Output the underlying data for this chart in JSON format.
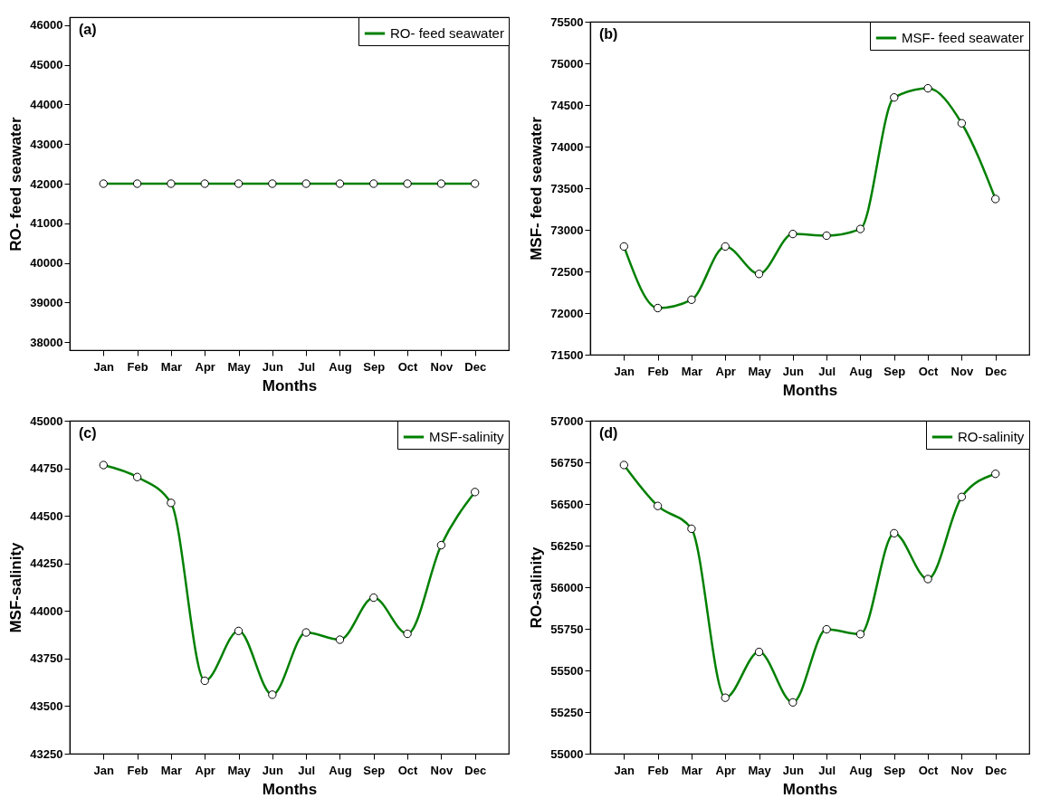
{
  "chart_data": [
    {
      "type": "line",
      "annotations": [
        "(a)"
      ],
      "categories": [
        "Jan",
        "Feb",
        "Mar",
        "Apr",
        "May",
        "Jun",
        "Jul",
        "Aug",
        "Sep",
        "Oct",
        "Nov",
        "Dec"
      ],
      "series": [
        {
          "name": "RO- feed seawater",
          "color": "#008000",
          "values": [
            42000,
            42000,
            42000,
            42000,
            42000,
            42000,
            42000,
            42000,
            42000,
            42000,
            42000,
            42000
          ]
        }
      ],
      "xlabel": "Months",
      "ylabel": "RO- feed seawater",
      "ylim": [
        37800,
        46200
      ],
      "yticks": [
        38000,
        39000,
        40000,
        41000,
        42000,
        43000,
        44000,
        45000,
        46000
      ],
      "marker": "circle",
      "legend": "top right"
    },
    {
      "type": "line",
      "annotations": [
        "(b)"
      ],
      "categories": [
        "Jan",
        "Feb",
        "Mar",
        "Apr",
        "May",
        "Jun",
        "Jul",
        "Aug",
        "Sep",
        "Oct",
        "Nov",
        "Dec"
      ],
      "series": [
        {
          "name": "MSF- feed seawater",
          "color": "#008000",
          "values": [
            72800,
            72060,
            72160,
            72800,
            72470,
            72950,
            72930,
            73010,
            74590,
            74700,
            74280,
            73370
          ]
        }
      ],
      "xlabel": "Months",
      "ylabel": "MSF- feed seawater",
      "ylim": [
        71500,
        75500
      ],
      "yticks": [
        71500,
        72000,
        72500,
        73000,
        73500,
        74000,
        74500,
        75000,
        75500
      ],
      "marker": "circle",
      "legend": "top right"
    },
    {
      "type": "line",
      "annotations": [
        "(c)"
      ],
      "categories": [
        "Jan",
        "Feb",
        "Mar",
        "Apr",
        "May",
        "Jun",
        "Jul",
        "Aug",
        "Sep",
        "Oct",
        "Nov",
        "Dec"
      ],
      "series": [
        {
          "name": "MSF-salinity",
          "color": "#008000",
          "values": [
            44767,
            44704,
            44568,
            43633,
            43895,
            43560,
            43887,
            43849,
            44070,
            43880,
            44346,
            44625
          ]
        }
      ],
      "xlabel": "Months",
      "ylabel": "MSF-salinity",
      "ylim": [
        43250,
        45000
      ],
      "yticks": [
        43250,
        43500,
        43750,
        44000,
        44250,
        44500,
        44750,
        45000
      ],
      "marker": "circle",
      "legend": "top right"
    },
    {
      "type": "line",
      "annotations": [
        "(d)"
      ],
      "categories": [
        "Jan",
        "Feb",
        "Mar",
        "Apr",
        "May",
        "Jun",
        "Jul",
        "Aug",
        "Sep",
        "Oct",
        "Nov",
        "Dec"
      ],
      "series": [
        {
          "name": "RO-salinity",
          "color": "#008000",
          "values": [
            56734,
            56488,
            56351,
            55336,
            55611,
            55308,
            55747,
            55718,
            56324,
            56049,
            56542,
            56681
          ]
        }
      ],
      "xlabel": "Months",
      "ylabel": "RO-salinity",
      "ylim": [
        55000,
        57000
      ],
      "yticks": [
        55000,
        55250,
        55500,
        55750,
        56000,
        56250,
        56500,
        56750,
        57000
      ],
      "marker": "circle",
      "legend": "top right"
    }
  ]
}
